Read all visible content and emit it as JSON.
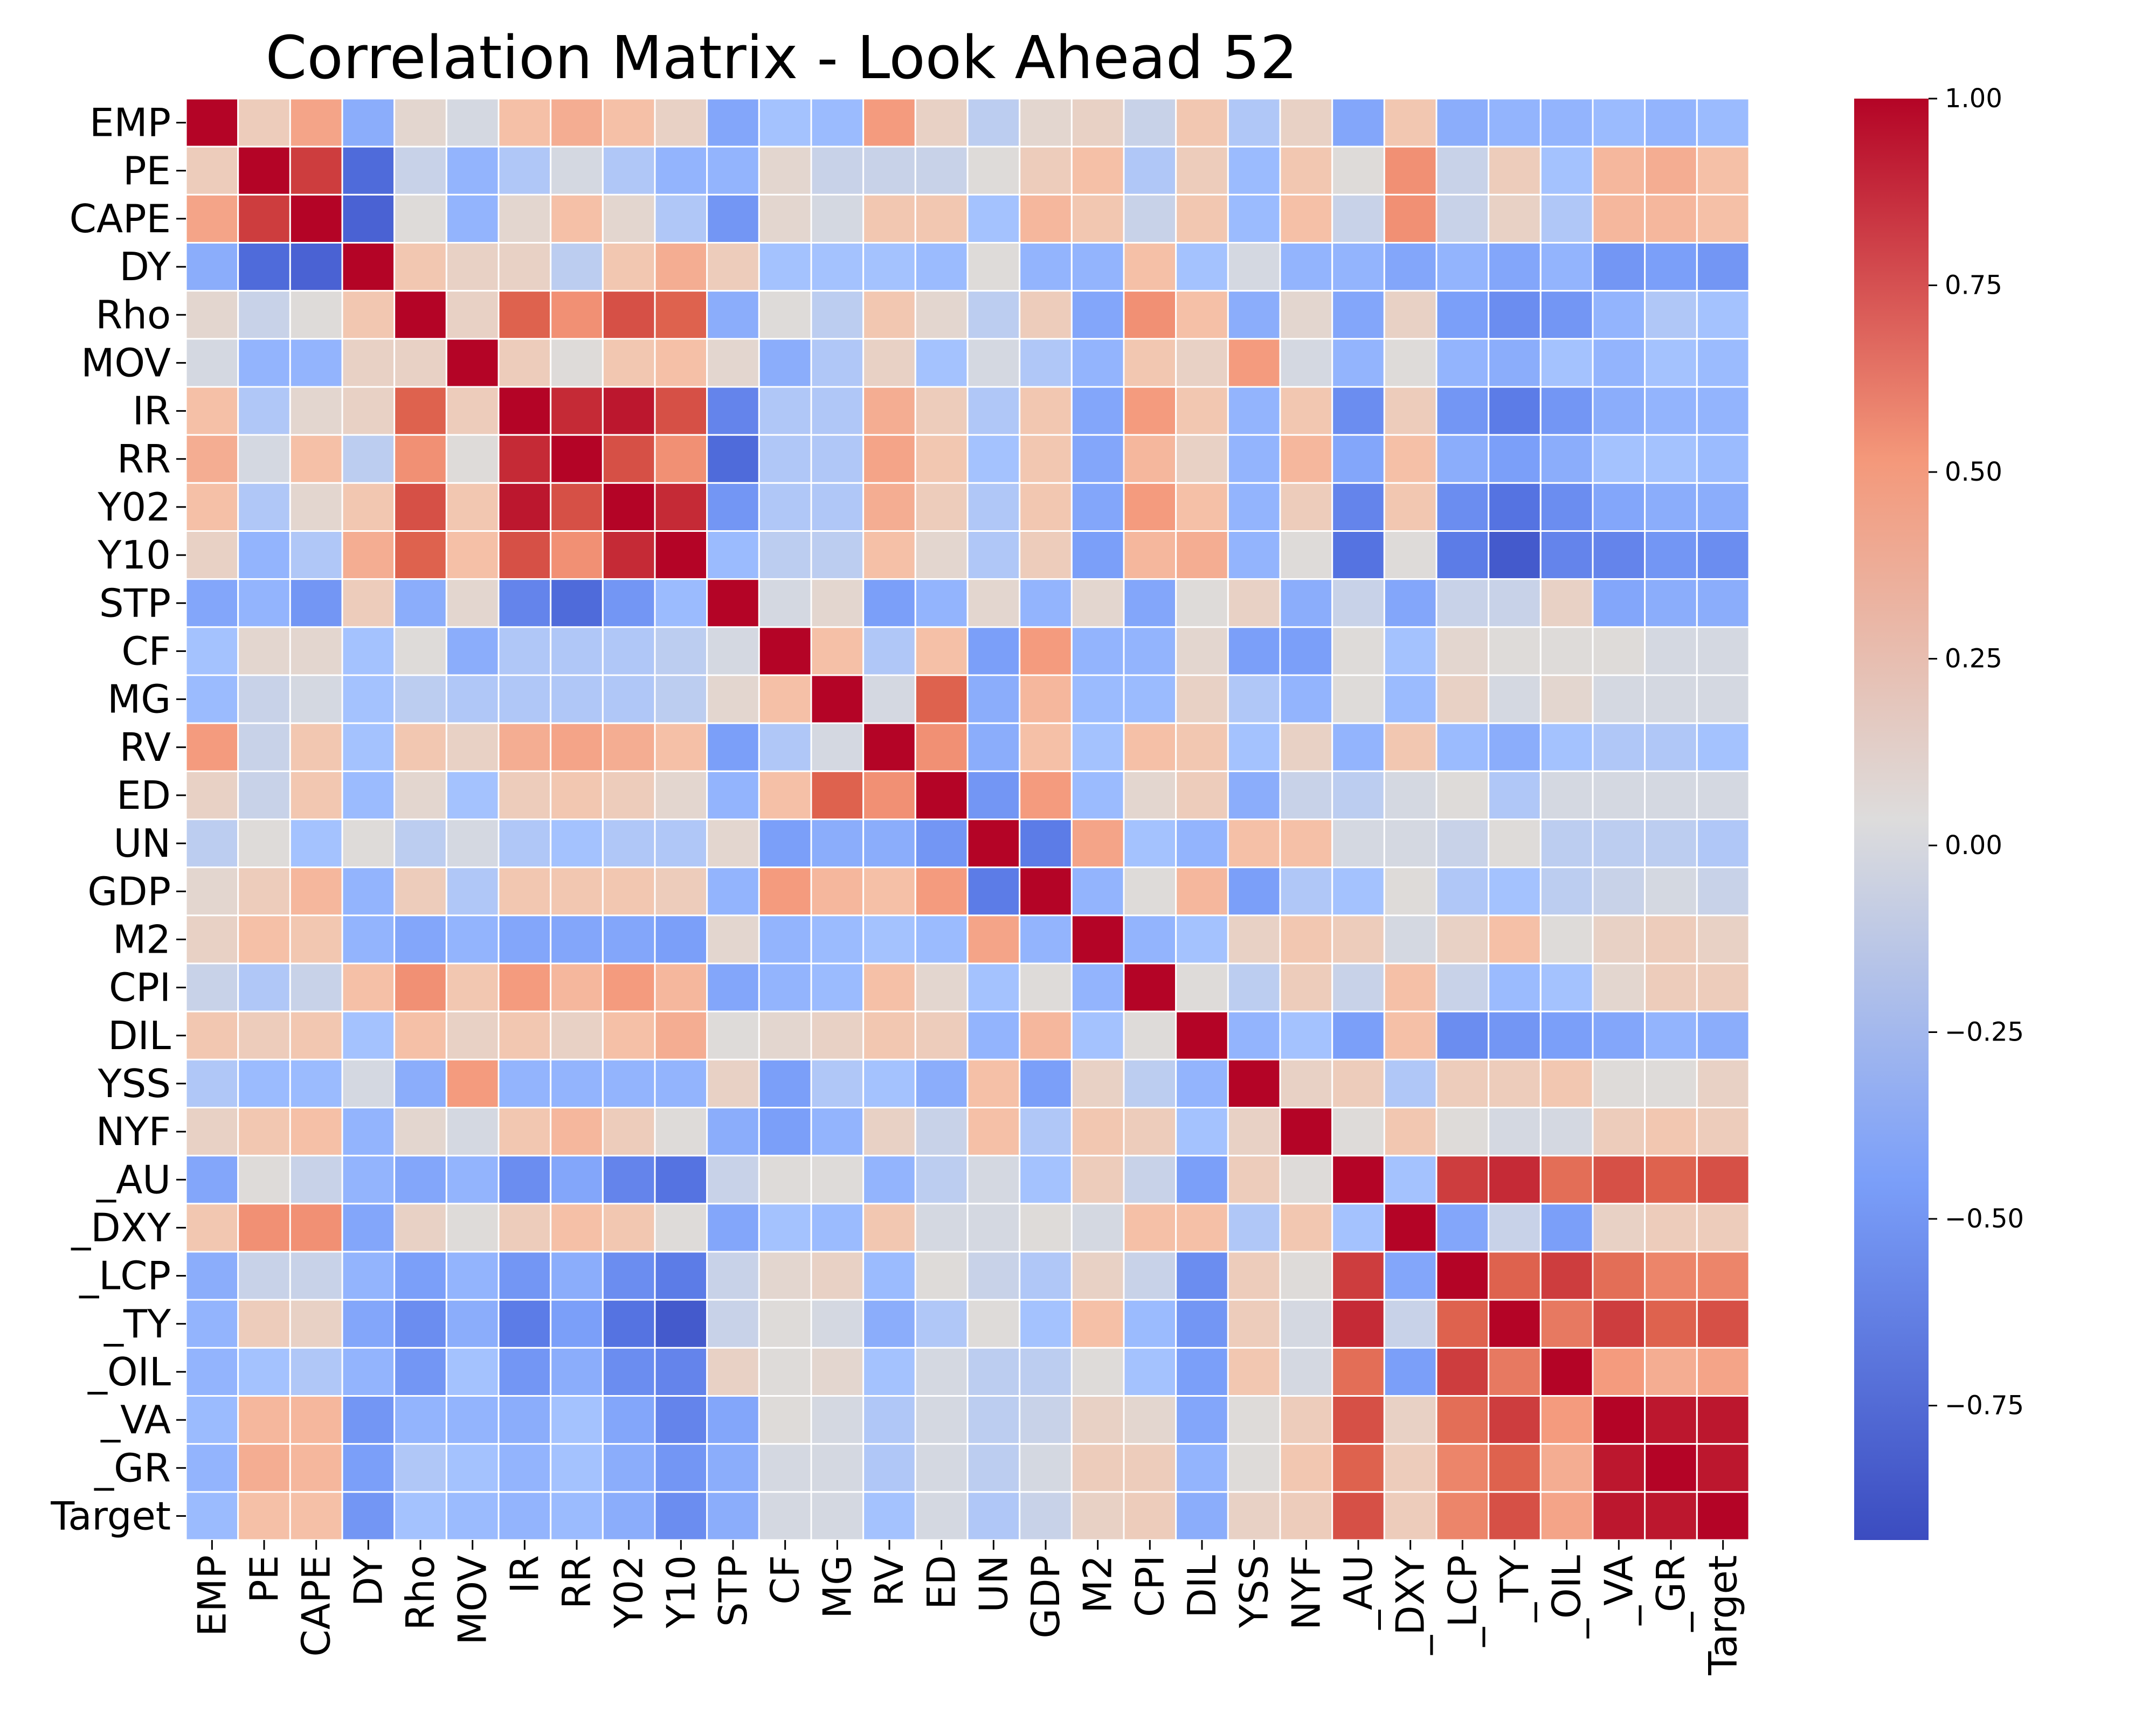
{
  "chart_data": {
    "type": "heatmap",
    "title": "Correlation Matrix - Look Ahead 52",
    "colormap": "coolwarm",
    "vmin": -0.93,
    "vmax": 1.0,
    "grid_lines": "white",
    "labels": [
      "EMP",
      "PE",
      "CAPE",
      "DY",
      "Rho",
      "MOV ",
      "IR",
      "RR",
      "Y02",
      "Y10",
      "STP",
      "CF",
      "MG",
      "RV",
      "ED",
      "UN",
      "GDP",
      "M2",
      "CPI",
      "DIL",
      "YSS",
      "NYF",
      "_AU",
      "_DXY",
      "_LCP",
      "_TY",
      "_OIL",
      "_VA",
      "_GR",
      "Target"
    ],
    "colorbar": {
      "ticks": [
        1.0,
        0.75,
        0.5,
        0.25,
        0.0,
        -0.25,
        -0.5,
        -0.75
      ],
      "tick_labels": [
        "1.00",
        "0.75",
        "0.50",
        "0.25",
        "0.00",
        "−0.25",
        "−0.50",
        "−0.75"
      ]
    },
    "values": [
      [
        1,
        0.2,
        0.45,
        -0.35,
        0.1,
        0,
        0.3,
        0.4,
        0.3,
        0.15,
        -0.4,
        -0.2,
        -0.25,
        0.5,
        0.15,
        -0.1,
        0.1,
        0.15,
        -0.05,
        0.25,
        -0.15,
        0.15,
        -0.4,
        0.25,
        -0.35,
        -0.3,
        -0.3,
        -0.25,
        -0.3,
        -0.25
      ],
      [
        0.2,
        1,
        0.85,
        -0.75,
        -0.05,
        -0.3,
        -0.15,
        0,
        -0.15,
        -0.3,
        -0.3,
        0.1,
        -0.05,
        -0.05,
        -0.05,
        0.05,
        0.2,
        0.3,
        -0.15,
        0.2,
        -0.25,
        0.25,
        0.05,
        0.55,
        -0.05,
        0.2,
        -0.2,
        0.35,
        0.4,
        0.3
      ],
      [
        0.45,
        0.85,
        1,
        -0.8,
        0.05,
        -0.3,
        0.1,
        0.3,
        0.1,
        -0.15,
        -0.5,
        0.1,
        0,
        0.25,
        0.25,
        -0.2,
        0.35,
        0.25,
        -0.05,
        0.25,
        -0.25,
        0.3,
        -0.05,
        0.55,
        -0.05,
        0.15,
        -0.15,
        0.35,
        0.35,
        0.3
      ],
      [
        -0.35,
        -0.75,
        -0.8,
        1,
        0.25,
        0.15,
        0.15,
        -0.1,
        0.25,
        0.4,
        0.2,
        -0.2,
        -0.2,
        -0.2,
        -0.25,
        0.05,
        -0.3,
        -0.3,
        0.3,
        -0.2,
        0,
        -0.3,
        -0.3,
        -0.4,
        -0.3,
        -0.4,
        -0.3,
        -0.5,
        -0.45,
        -0.5
      ],
      [
        0.1,
        -0.05,
        0.05,
        0.25,
        1,
        0.15,
        0.75,
        0.55,
        0.8,
        0.75,
        -0.35,
        0.05,
        -0.1,
        0.25,
        0.1,
        -0.1,
        0.2,
        -0.4,
        0.55,
        0.3,
        -0.35,
        0.1,
        -0.4,
        0.15,
        -0.45,
        -0.55,
        -0.5,
        -0.3,
        -0.15,
        -0.2
      ],
      [
        0,
        -0.3,
        -0.3,
        0.15,
        0.15,
        1,
        0.2,
        0.05,
        0.25,
        0.3,
        0.1,
        -0.35,
        -0.15,
        0.15,
        -0.2,
        0,
        -0.15,
        -0.3,
        0.25,
        0.15,
        0.5,
        0,
        -0.3,
        0.05,
        -0.3,
        -0.35,
        -0.2,
        -0.3,
        -0.2,
        -0.25
      ],
      [
        0.3,
        -0.15,
        0.1,
        0.15,
        0.75,
        0.2,
        1,
        0.9,
        0.95,
        0.8,
        -0.6,
        -0.15,
        -0.15,
        0.4,
        0.2,
        -0.15,
        0.25,
        -0.4,
        0.5,
        0.25,
        -0.3,
        0.25,
        -0.55,
        0.2,
        -0.5,
        -0.65,
        -0.5,
        -0.35,
        -0.3,
        -0.3
      ],
      [
        0.4,
        0,
        0.3,
        -0.1,
        0.55,
        0.05,
        0.9,
        1,
        0.8,
        0.55,
        -0.75,
        -0.15,
        -0.15,
        0.45,
        0.25,
        -0.2,
        0.25,
        -0.4,
        0.35,
        0.15,
        -0.3,
        0.35,
        -0.4,
        0.3,
        -0.35,
        -0.45,
        -0.35,
        -0.2,
        -0.2,
        -0.25
      ],
      [
        0.3,
        -0.15,
        0.1,
        0.25,
        0.8,
        0.25,
        0.95,
        0.8,
        1,
        0.9,
        -0.5,
        -0.15,
        -0.15,
        0.4,
        0.2,
        -0.15,
        0.25,
        -0.4,
        0.5,
        0.3,
        -0.3,
        0.2,
        -0.6,
        0.25,
        -0.55,
        -0.7,
        -0.55,
        -0.4,
        -0.35,
        -0.35
      ],
      [
        0.15,
        -0.3,
        -0.15,
        0.4,
        0.75,
        0.3,
        0.8,
        0.55,
        0.9,
        1,
        -0.25,
        -0.1,
        -0.1,
        0.3,
        0.1,
        -0.15,
        0.2,
        -0.45,
        0.35,
        0.4,
        -0.3,
        0.05,
        -0.7,
        0.05,
        -0.65,
        -0.85,
        -0.6,
        -0.6,
        -0.5,
        -0.55
      ],
      [
        -0.4,
        -0.3,
        -0.5,
        0.2,
        -0.35,
        0.1,
        -0.6,
        -0.75,
        -0.5,
        -0.25,
        1,
        0,
        0.1,
        -0.45,
        -0.3,
        0.1,
        -0.3,
        0.1,
        -0.4,
        0.05,
        0.15,
        -0.35,
        -0.05,
        -0.4,
        -0.05,
        -0.05,
        0.15,
        -0.4,
        -0.35,
        -0.35
      ],
      [
        -0.2,
        0.1,
        0.1,
        -0.2,
        0.05,
        -0.35,
        -0.15,
        -0.15,
        -0.15,
        -0.1,
        0,
        1,
        0.3,
        -0.15,
        0.3,
        -0.45,
        0.5,
        -0.3,
        -0.3,
        0.1,
        -0.45,
        -0.45,
        0.05,
        -0.2,
        0.1,
        0.05,
        0.05,
        0.05,
        0,
        0
      ],
      [
        -0.25,
        -0.05,
        0,
        -0.2,
        -0.1,
        -0.15,
        -0.15,
        -0.15,
        -0.15,
        -0.1,
        0.1,
        0.3,
        1,
        0,
        0.75,
        -0.35,
        0.35,
        -0.25,
        -0.25,
        0.15,
        -0.15,
        -0.3,
        0.05,
        -0.25,
        0.15,
        0,
        0.1,
        0,
        0,
        0
      ],
      [
        0.5,
        -0.05,
        0.25,
        -0.2,
        0.25,
        0.15,
        0.4,
        0.45,
        0.4,
        0.3,
        -0.45,
        -0.15,
        0,
        1,
        0.55,
        -0.35,
        0.3,
        -0.2,
        0.3,
        0.25,
        -0.2,
        0.15,
        -0.3,
        0.25,
        -0.25,
        -0.35,
        -0.2,
        -0.15,
        -0.15,
        -0.2
      ],
      [
        0.15,
        -0.05,
        0.25,
        -0.25,
        0.1,
        -0.2,
        0.2,
        0.25,
        0.2,
        0.1,
        -0.3,
        0.3,
        0.75,
        0.55,
        1,
        -0.5,
        0.5,
        -0.25,
        0.1,
        0.2,
        -0.35,
        -0.05,
        -0.1,
        0,
        0.05,
        -0.15,
        0,
        0,
        0,
        0
      ],
      [
        -0.1,
        0.05,
        -0.2,
        0.05,
        -0.1,
        0,
        -0.15,
        -0.2,
        -0.15,
        -0.15,
        0.1,
        -0.45,
        -0.35,
        -0.35,
        -0.5,
        1,
        -0.65,
        0.45,
        -0.2,
        -0.3,
        0.3,
        0.3,
        0,
        0,
        -0.05,
        0.05,
        -0.1,
        -0.1,
        -0.1,
        -0.15
      ],
      [
        0.1,
        0.2,
        0.35,
        -0.3,
        0.2,
        -0.15,
        0.25,
        0.25,
        0.25,
        0.2,
        -0.3,
        0.5,
        0.35,
        0.3,
        0.5,
        -0.65,
        1,
        -0.3,
        0.05,
        0.35,
        -0.45,
        -0.15,
        -0.2,
        0.05,
        -0.15,
        -0.2,
        -0.1,
        -0.05,
        0,
        -0.05
      ],
      [
        0.15,
        0.3,
        0.25,
        -0.3,
        -0.4,
        -0.3,
        -0.4,
        -0.4,
        -0.4,
        -0.45,
        0.1,
        -0.3,
        -0.25,
        -0.2,
        -0.25,
        0.45,
        -0.3,
        1,
        -0.3,
        -0.2,
        0.15,
        0.25,
        0.2,
        0,
        0.15,
        0.3,
        0.05,
        0.15,
        0.2,
        0.15
      ],
      [
        -0.05,
        -0.15,
        -0.05,
        0.3,
        0.55,
        0.25,
        0.5,
        0.35,
        0.5,
        0.35,
        -0.4,
        -0.3,
        -0.25,
        0.3,
        0.1,
        -0.2,
        0.05,
        -0.3,
        1,
        0.05,
        -0.1,
        0.2,
        -0.05,
        0.3,
        -0.05,
        -0.25,
        -0.2,
        0.1,
        0.2,
        0.2
      ],
      [
        0.25,
        0.2,
        0.25,
        -0.2,
        0.3,
        0.15,
        0.25,
        0.15,
        0.3,
        0.4,
        0.05,
        0.1,
        0.15,
        0.25,
        0.2,
        -0.3,
        0.35,
        -0.2,
        0.05,
        1,
        -0.3,
        -0.2,
        -0.45,
        0.3,
        -0.55,
        -0.5,
        -0.45,
        -0.4,
        -0.3,
        -0.35
      ],
      [
        -0.15,
        -0.25,
        -0.25,
        0,
        -0.35,
        0.5,
        -0.3,
        -0.3,
        -0.3,
        -0.3,
        0.15,
        -0.45,
        -0.15,
        -0.2,
        -0.35,
        0.3,
        -0.45,
        0.15,
        -0.1,
        -0.3,
        1,
        0.15,
        0.2,
        -0.15,
        0.2,
        0.2,
        0.25,
        0.05,
        0.05,
        0.15
      ],
      [
        0.15,
        0.25,
        0.3,
        -0.3,
        0.1,
        0,
        0.25,
        0.35,
        0.2,
        0.05,
        -0.35,
        -0.45,
        -0.3,
        0.15,
        -0.05,
        0.3,
        -0.15,
        0.25,
        0.2,
        -0.2,
        0.15,
        1,
        0.05,
        0.25,
        0.05,
        0,
        0,
        0.2,
        0.25,
        0.2
      ],
      [
        -0.4,
        0.05,
        -0.05,
        -0.3,
        -0.4,
        -0.3,
        -0.55,
        -0.4,
        -0.6,
        -0.7,
        -0.05,
        0.05,
        0.05,
        -0.3,
        -0.1,
        0,
        -0.2,
        0.2,
        -0.05,
        -0.45,
        0.2,
        0.05,
        1,
        -0.2,
        0.85,
        0.9,
        0.7,
        0.8,
        0.75,
        0.8
      ],
      [
        0.25,
        0.55,
        0.55,
        -0.4,
        0.15,
        0.05,
        0.2,
        0.3,
        0.25,
        0.05,
        -0.4,
        -0.2,
        -0.25,
        0.25,
        0,
        0,
        0.05,
        0,
        0.3,
        0.3,
        -0.15,
        0.25,
        -0.2,
        1,
        -0.4,
        -0.05,
        -0.45,
        0.15,
        0.2,
        0.2
      ],
      [
        -0.35,
        -0.05,
        -0.05,
        -0.3,
        -0.45,
        -0.3,
        -0.5,
        -0.35,
        -0.55,
        -0.65,
        -0.05,
        0.1,
        0.15,
        -0.25,
        0.05,
        -0.05,
        -0.15,
        0.15,
        -0.05,
        -0.55,
        0.2,
        0.05,
        0.85,
        -0.4,
        1,
        0.75,
        0.85,
        0.7,
        0.6,
        0.6
      ],
      [
        -0.3,
        0.2,
        0.15,
        -0.4,
        -0.55,
        -0.35,
        -0.65,
        -0.45,
        -0.7,
        -0.85,
        -0.05,
        0.05,
        0,
        -0.35,
        -0.15,
        0.05,
        -0.2,
        0.3,
        -0.25,
        -0.5,
        0.2,
        0,
        0.9,
        -0.05,
        0.75,
        1,
        0.65,
        0.85,
        0.75,
        0.8
      ],
      [
        -0.3,
        -0.2,
        -0.15,
        -0.3,
        -0.5,
        -0.2,
        -0.5,
        -0.35,
        -0.55,
        -0.6,
        0.15,
        0.05,
        0.1,
        -0.2,
        0,
        -0.1,
        -0.1,
        0.05,
        -0.2,
        -0.45,
        0.25,
        0,
        0.7,
        -0.45,
        0.85,
        0.65,
        1,
        0.5,
        0.4,
        0.45
      ],
      [
        -0.25,
        0.35,
        0.35,
        -0.5,
        -0.3,
        -0.3,
        -0.35,
        -0.2,
        -0.4,
        -0.6,
        -0.4,
        0.05,
        0,
        -0.15,
        0,
        -0.1,
        -0.05,
        0.15,
        0.1,
        -0.4,
        0.05,
        0.2,
        0.8,
        0.15,
        0.7,
        0.85,
        0.5,
        1,
        0.95,
        0.95
      ],
      [
        -0.3,
        0.4,
        0.35,
        -0.45,
        -0.15,
        -0.2,
        -0.3,
        -0.2,
        -0.35,
        -0.5,
        -0.35,
        0,
        0,
        -0.15,
        0,
        -0.1,
        0,
        0.2,
        0.2,
        -0.3,
        0.05,
        0.25,
        0.75,
        0.2,
        0.6,
        0.75,
        0.4,
        0.95,
        1,
        0.95
      ],
      [
        -0.25,
        0.3,
        0.3,
        -0.5,
        -0.2,
        -0.25,
        -0.3,
        -0.25,
        -0.35,
        -0.55,
        -0.35,
        0,
        0,
        -0.2,
        0,
        -0.15,
        -0.05,
        0.15,
        0.2,
        -0.35,
        0.15,
        0.2,
        0.8,
        0.2,
        0.6,
        0.8,
        0.45,
        0.95,
        0.95,
        1
      ]
    ]
  }
}
